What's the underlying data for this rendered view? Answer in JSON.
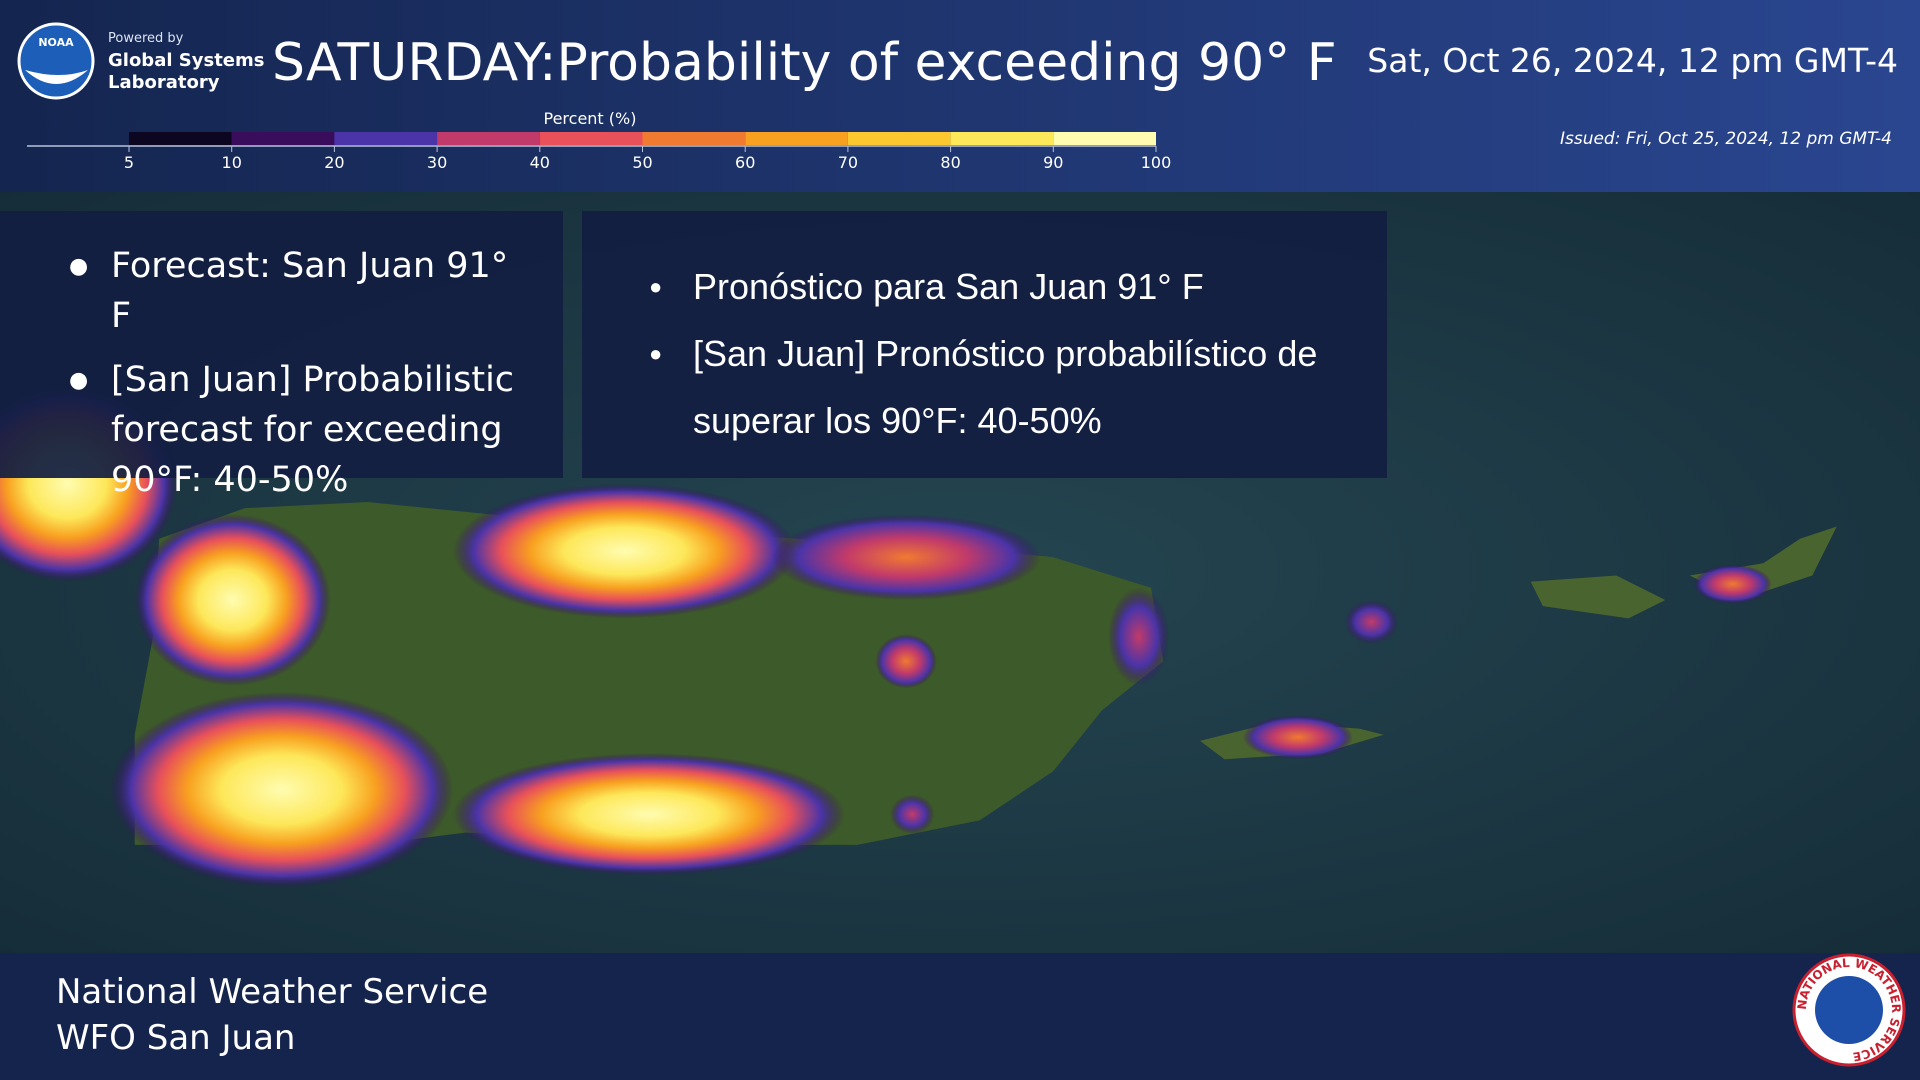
{
  "header": {
    "noaa_logo": "NOAA",
    "powered_by": "Powered by",
    "lab_line1": "Global Systems",
    "lab_line2": "Laboratory",
    "title": "SATURDAY:Probability of exceeding 90° F",
    "valid_time": "Sat, Oct 26, 2024, 12 pm GMT-4",
    "issued": "Issued: Fri, Oct 25, 2024, 12 pm GMT-4"
  },
  "colorbar": {
    "label": "Percent (%)",
    "ticks": [
      5,
      10,
      20,
      30,
      40,
      50,
      60,
      70,
      80,
      90,
      100
    ],
    "colors": [
      "#0d0620",
      "#3a0c5c",
      "#4a34a8",
      "#c23a6a",
      "#e8505a",
      "#f07a30",
      "#f8a020",
      "#fcc830",
      "#fde85a",
      "#fffcb0"
    ]
  },
  "english_bullets": [
    "Forecast: San Juan 91° F",
    "[San Juan] Probabilistic forecast for exceeding 90°F: 40-50%"
  ],
  "spanish_bullets": [
    "Pronóstico para San Juan 91° F",
    "[San Juan] Pronóstico probabilístico de superar los 90°F: 40-50%"
  ],
  "footer": {
    "line1": "National Weather Service",
    "line2": "WFO San Juan",
    "nws_logo": "NATIONAL WEATHER SERVICE"
  }
}
